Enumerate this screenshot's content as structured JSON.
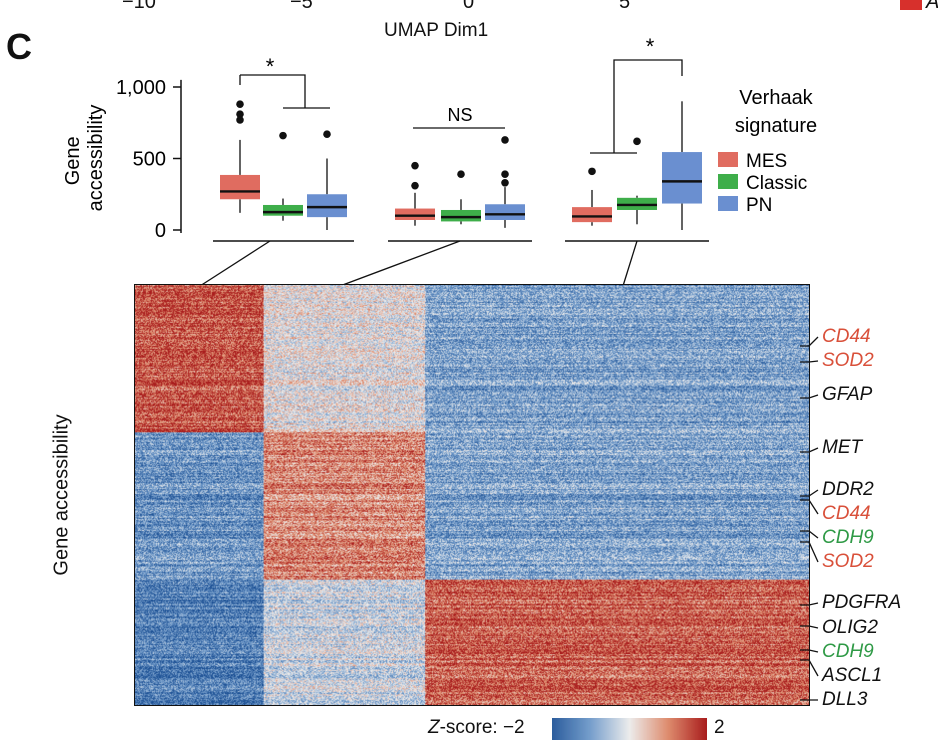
{
  "top_strip": {
    "ticks": [
      "−10",
      "−5",
      "0",
      "5"
    ],
    "xlabel": "UMAP Dim1",
    "legend_fragment": "A"
  },
  "panel_label": "C",
  "chart_data": [
    {
      "type": "box",
      "ylabel": "Gene accessibility",
      "yticks": [
        "1,000",
        "500",
        "0"
      ],
      "ylim": [
        0,
        1050
      ],
      "legend_title": "Verhaak signature",
      "legend": [
        {
          "name": "MES",
          "color": "#e06c60"
        },
        {
          "name": "Classic",
          "color": "#3eae4a"
        },
        {
          "name": "PN",
          "color": "#6a8fd0"
        }
      ],
      "groups": [
        {
          "significance": "*",
          "boxes": [
            {
              "series": "MES",
              "color": "#e06c60",
              "whisker_low": 120,
              "q1": 215,
              "median": 270,
              "q3": 385,
              "whisker_high": 630,
              "outliers": [
                880,
                810,
                770
              ]
            },
            {
              "series": "Classic",
              "color": "#3eae4a",
              "whisker_low": 65,
              "q1": 100,
              "median": 125,
              "q3": 175,
              "whisker_high": 220,
              "outliers": [
                660
              ]
            },
            {
              "series": "PN",
              "color": "#6a8fd0",
              "whisker_low": 0,
              "q1": 90,
              "median": 160,
              "q3": 250,
              "whisker_high": 500,
              "outliers": [
                670
              ]
            }
          ]
        },
        {
          "significance": "NS",
          "boxes": [
            {
              "series": "MES",
              "color": "#e06c60",
              "whisker_low": 30,
              "q1": 70,
              "median": 100,
              "q3": 150,
              "whisker_high": 260,
              "outliers": [
                450,
                310
              ]
            },
            {
              "series": "Classic",
              "color": "#3eae4a",
              "whisker_low": 40,
              "q1": 60,
              "median": 90,
              "q3": 140,
              "whisker_high": 215,
              "outliers": [
                390
              ]
            },
            {
              "series": "PN",
              "color": "#6a8fd0",
              "whisker_low": 15,
              "q1": 70,
              "median": 110,
              "q3": 180,
              "whisker_high": 300,
              "outliers": [
                630,
                390,
                330
              ]
            }
          ]
        },
        {
          "significance": "*",
          "boxes": [
            {
              "series": "MES",
              "color": "#e06c60",
              "whisker_low": 30,
              "q1": 55,
              "median": 95,
              "q3": 160,
              "whisker_high": 280,
              "outliers": [
                410
              ]
            },
            {
              "series": "Classic",
              "color": "#3eae4a",
              "whisker_low": 40,
              "q1": 140,
              "median": 175,
              "q3": 225,
              "whisker_high": 240,
              "outliers": [
                620
              ]
            },
            {
              "series": "PN",
              "color": "#6a8fd0",
              "whisker_low": 0,
              "q1": 185,
              "median": 340,
              "q3": 545,
              "whisker_high": 900,
              "outliers": []
            }
          ]
        }
      ]
    },
    {
      "type": "heatmap",
      "ylabel": "Gene accessibility",
      "colorbar": {
        "label_prefix": "Z",
        "label_suffix": "-score: −2",
        "max_label": "2",
        "min": -2,
        "max": 2
      },
      "column_blocks": [
        {
          "fraction": 0.19,
          "rows_high": [
            0.0,
            0.34
          ],
          "rows_mid": [
            0.34,
            0.69
          ],
          "rows_low": [
            0.69,
            1.0
          ]
        },
        {
          "fraction": 0.24
        },
        {
          "fraction": 0.57
        }
      ],
      "row_blocks": [
        {
          "fraction": 0.35,
          "block1": 1.5,
          "block2": 0.0,
          "block3": -1.0
        },
        {
          "fraction": 0.35,
          "block1": -1.2,
          "block2": 1.0,
          "block3": -1.0
        },
        {
          "fraction": 0.3,
          "block1": -1.5,
          "block2": -0.3,
          "block3": 1.4
        }
      ],
      "genes": [
        {
          "name": "CD44",
          "color": "#d9503a"
        },
        {
          "name": "SOD2",
          "color": "#d9503a"
        },
        {
          "name": "GFAP",
          "color": "#111111"
        },
        {
          "name": "MET",
          "color": "#111111"
        },
        {
          "name": "DDR2",
          "color": "#111111"
        },
        {
          "name": "CD44",
          "color": "#d9503a"
        },
        {
          "name": "CDH9",
          "color": "#2f9a46"
        },
        {
          "name": "SOD2",
          "color": "#d9503a"
        },
        {
          "name": "PDGFRA",
          "color": "#111111"
        },
        {
          "name": "OLIG2",
          "color": "#111111"
        },
        {
          "name": "CDH9",
          "color": "#2f9a46"
        },
        {
          "name": "ASCL1",
          "color": "#111111"
        },
        {
          "name": "DLL3",
          "color": "#111111"
        }
      ]
    }
  ]
}
